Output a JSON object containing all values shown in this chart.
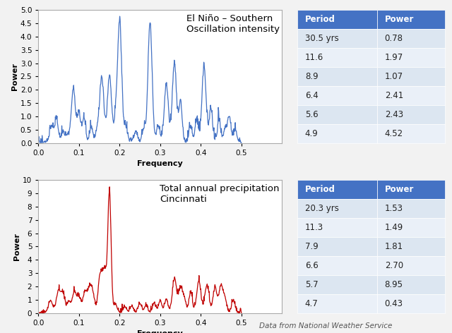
{
  "title1": "El Niño – Southern\nOscillation intensity",
  "title2": "Total annual precipitation\nCincinnati",
  "xlabel": "Frequency",
  "ylabel": "Power",
  "color1": "#4472C4",
  "color2": "#C00000",
  "xlim": [
    0,
    0.6
  ],
  "ylim1": [
    0,
    5.0
  ],
  "ylim2": [
    0,
    10.0
  ],
  "yticks1": [
    0.0,
    0.5,
    1.0,
    1.5,
    2.0,
    2.5,
    3.0,
    3.5,
    4.0,
    4.5,
    5.0
  ],
  "yticks2": [
    0.0,
    1.0,
    2.0,
    3.0,
    4.0,
    5.0,
    6.0,
    7.0,
    8.0,
    9.0,
    10.0
  ],
  "xticks": [
    0,
    0.1,
    0.2,
    0.3,
    0.4,
    0.5
  ],
  "table1_headers": [
    "Period",
    "Power"
  ],
  "table1_rows": [
    [
      "30.5 yrs",
      "0.78"
    ],
    [
      "11.6",
      "1.97"
    ],
    [
      "8.9",
      "1.07"
    ],
    [
      "6.4",
      "2.41"
    ],
    [
      "5.6",
      "2.43"
    ],
    [
      "4.9",
      "4.52"
    ]
  ],
  "table2_headers": [
    "Period",
    "Power"
  ],
  "table2_rows": [
    [
      "20.3 yrs",
      "1.53"
    ],
    [
      "11.3",
      "1.49"
    ],
    [
      "7.9",
      "1.81"
    ],
    [
      "6.6",
      "2.70"
    ],
    [
      "5.7",
      "8.95"
    ],
    [
      "4.7",
      "0.43"
    ]
  ],
  "footer": "Data from National Weather Service",
  "header_bg": "#4472C4",
  "header_fg": "#FFFFFF",
  "row_odd": "#DCE6F1",
  "row_even": "#EAF0F8",
  "bg_color": "#F2F2F2",
  "plot_bg": "#FFFFFF"
}
